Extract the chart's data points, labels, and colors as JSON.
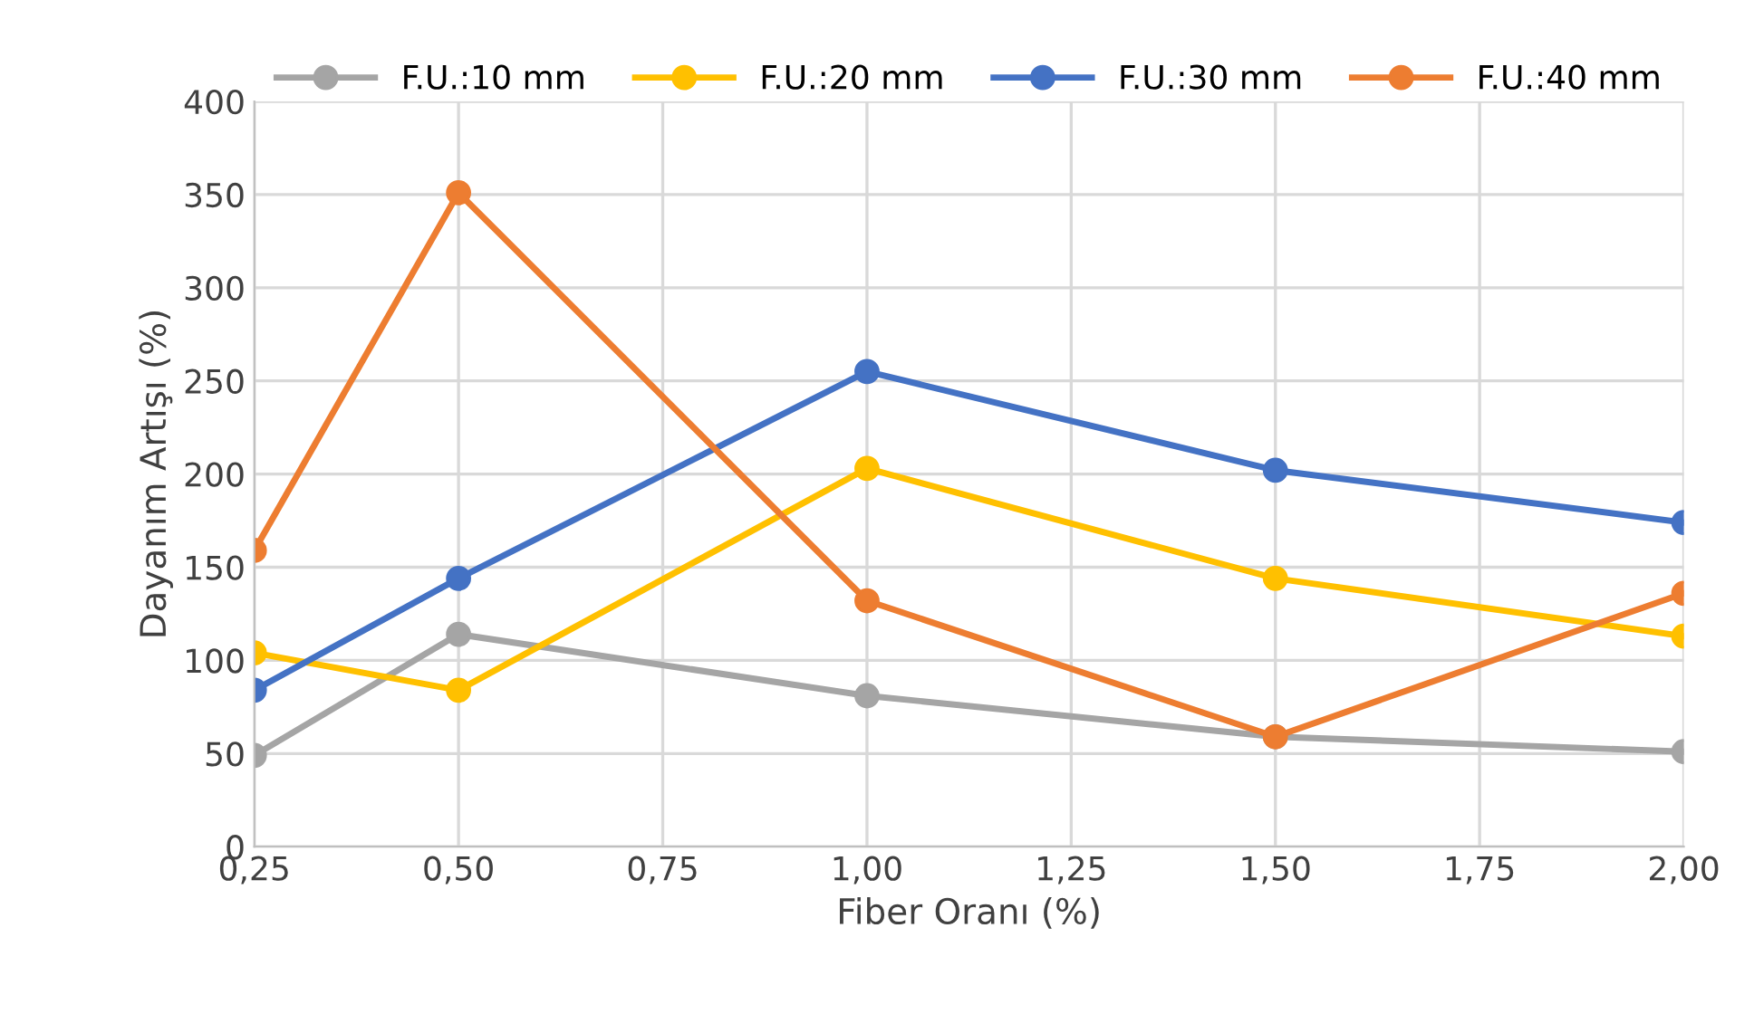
{
  "chart_data": {
    "type": "line",
    "xlabel": "Fiber Oranı (%)",
    "ylabel": "Dayanım Artışı (%)",
    "x": [
      0.25,
      0.5,
      1.0,
      1.5,
      2.0
    ],
    "series": [
      {
        "name": "F.U.:10 mm",
        "color": "#a5a5a5",
        "values": [
          49,
          114,
          81,
          59,
          51
        ]
      },
      {
        "name": "F.U.:20 mm",
        "color": "#ffc000",
        "values": [
          104,
          84,
          203,
          144,
          113
        ]
      },
      {
        "name": "F.U.:30 mm",
        "color": "#4472c4",
        "values": [
          84,
          144,
          255,
          202,
          174
        ]
      },
      {
        "name": "F.U.:40 mm",
        "color": "#ed7d31",
        "values": [
          159,
          351,
          132,
          59,
          136
        ]
      }
    ],
    "xlim": [
      0.25,
      2.0
    ],
    "xticks": [
      {
        "value": 0.25,
        "label": "0,25"
      },
      {
        "value": 0.5,
        "label": "0,50"
      },
      {
        "value": 0.75,
        "label": "0,75"
      },
      {
        "value": 1.0,
        "label": "1,00"
      },
      {
        "value": 1.25,
        "label": "1,25"
      },
      {
        "value": 1.5,
        "label": "1,50"
      },
      {
        "value": 1.75,
        "label": "1,75"
      },
      {
        "value": 2.0,
        "label": "2,00"
      }
    ],
    "ylim": [
      0,
      400
    ],
    "yticks": [
      0,
      50,
      100,
      150,
      200,
      250,
      300,
      350,
      400
    ],
    "grid": true,
    "legend": "top",
    "marker": "circle",
    "line_style": "solid"
  }
}
